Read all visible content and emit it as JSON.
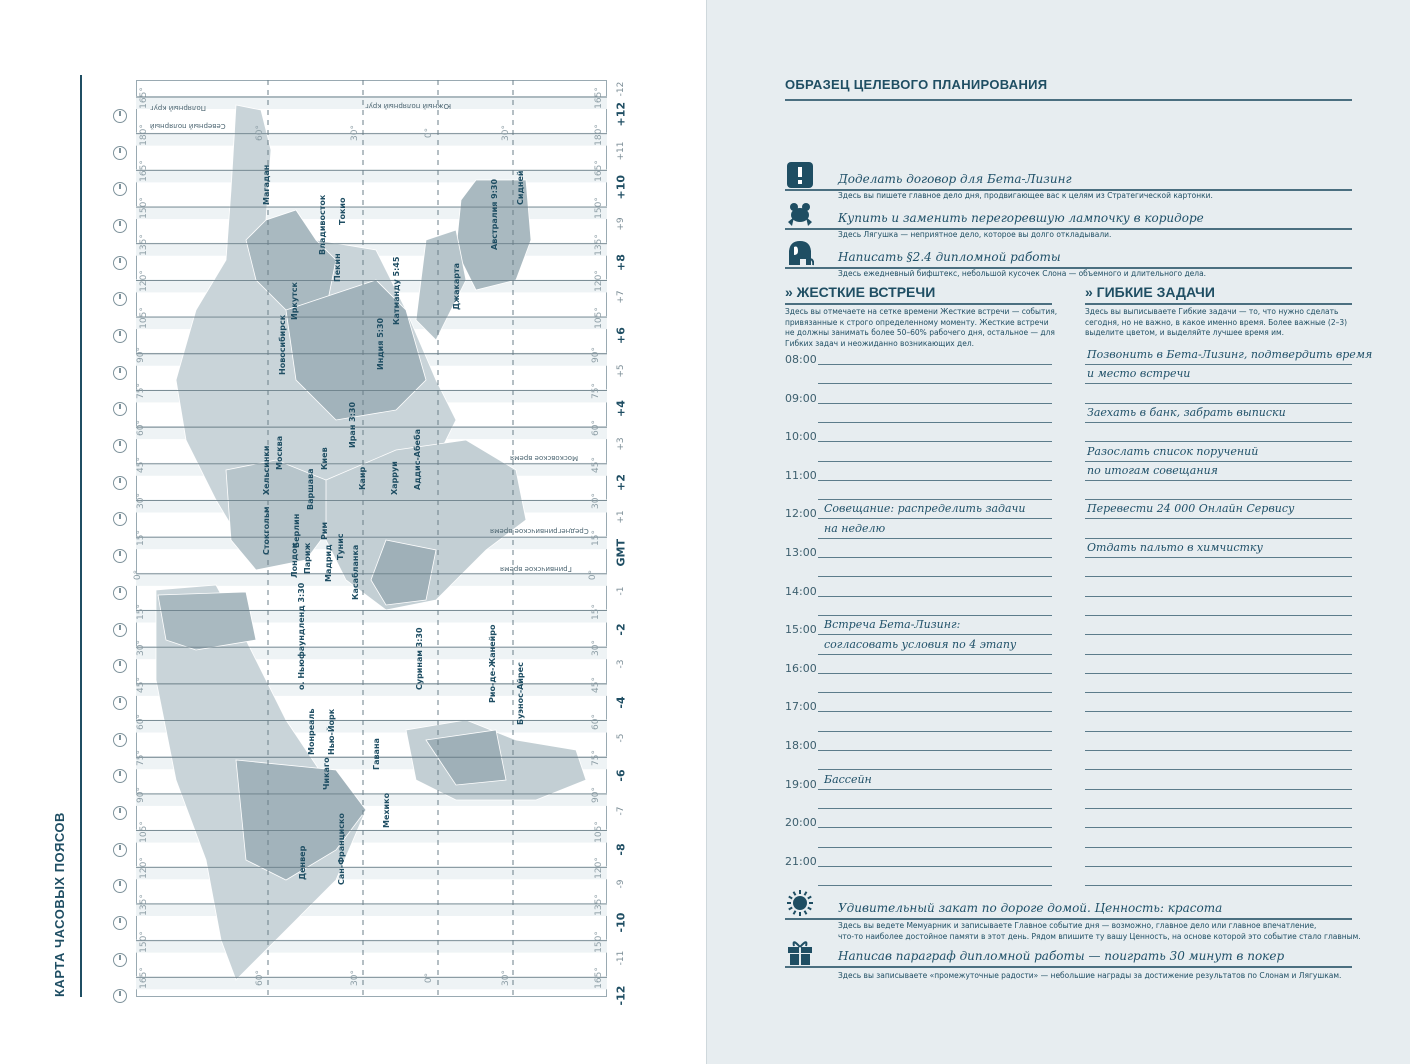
{
  "left_page": {
    "title": "КАРТА ЧАСОВЫХ ПОЯСОВ",
    "offsets": [
      "+12",
      "+11",
      "+10",
      "+9",
      "+8",
      "+7",
      "+6",
      "+5",
      "+4",
      "+3",
      "+2",
      "+1",
      "GMT",
      "-1",
      "-2",
      "-3",
      "-4",
      "-5",
      "-6",
      "-7",
      "-8",
      "-9",
      "-10",
      "-11",
      "-12"
    ],
    "top_offset": "-12",
    "degrees": [
      "165°",
      "180°",
      "165°",
      "150°",
      "135°",
      "120°",
      "105°",
      "90°",
      "75°",
      "60°",
      "45°",
      "30°",
      "15°",
      "0°",
      "15°",
      "30°",
      "45°",
      "60°",
      "75°",
      "90°",
      "105°",
      "120°",
      "135°",
      "150°",
      "165°"
    ],
    "meridians": [
      "60°",
      "30°",
      "0°",
      "30°"
    ],
    "annotations": [
      "Полярный круг",
      "Северный полярный",
      "Южный полярный круг",
      "Московское время",
      "Среднегринвичское время",
      "Гринвичское время"
    ],
    "cities": [
      "Магадан",
      "Владивосток",
      "Токио",
      "Пекин",
      "Иркутск",
      "Новосибирск",
      "Джакарта",
      "Индия 5:30",
      "Сидней",
      "Австралия 9:30",
      "Катманду 5:45",
      "Москва",
      "Стокгольм",
      "Хельсинки",
      "Берлин",
      "Варшава",
      "Киев",
      "Лондон",
      "Париж",
      "Мадрид",
      "Рим",
      "Тунис",
      "Касабланка",
      "Каир",
      "Харруи",
      "Аддис-Абеба",
      "Иран 3:30",
      "о. Ньюфаундленд 3:30",
      "Монреаль",
      "Нью-Йорк",
      "Чикаго",
      "Гавана",
      "Мехико",
      "Денвер",
      "Сан-Франциско",
      "Суринам 3:30",
      "Рио-де-Жанейро",
      "Буэнос-Айрес"
    ]
  },
  "right_page": {
    "title": "ОБРАЗЕЦ ЦЕЛЕВОГО ПЛАНИРОВАНИЯ",
    "key_tasks": [
      {
        "icon": "exclamation-icon",
        "entry": "Доделать договор для Бета-Лизинг",
        "hint": "Здесь вы пишете главное дело дня, продвигающее вас к целям из Стратегической картонки."
      },
      {
        "icon": "frog-icon",
        "entry": "Купить и заменить перегоревшую лампочку в коридоре",
        "hint": "Здесь Лягушка — неприятное дело, которое вы долго откладывали."
      },
      {
        "icon": "elephant-icon",
        "entry": "Написать §2.4 дипломной работы",
        "hint": "Здесь ежедневный бифштекс, небольшой кусочек Слона — объемного и длительного дела."
      }
    ],
    "hard_meetings": {
      "heading": "» ЖЕСТКИЕ ВСТРЕЧИ",
      "description": [
        "Здесь вы отмечаете на сетке времени Жесткие встречи — события,",
        "привязанные к строго определенному моменту. Жесткие встречи",
        "не должны занимать более 50–60% рабочего дня, остальное — для",
        "Гибких задач и неожиданно возникающих дел."
      ],
      "times": [
        "08:00",
        "09:00",
        "10:00",
        "11:00",
        "12:00",
        "13:00",
        "14:00",
        "15:00",
        "16:00",
        "17:00",
        "18:00",
        "19:00",
        "20:00",
        "21:00"
      ],
      "entries": [
        {
          "line": 8,
          "text": "Совещание: распределить задачи"
        },
        {
          "line": 9,
          "text": "на неделю"
        },
        {
          "line": 14,
          "text": "Встреча Бета-Лизинг:"
        },
        {
          "line": 15,
          "text": "согласовать условия по 4 этапу"
        },
        {
          "line": 22,
          "text": "Бассейн"
        }
      ]
    },
    "flexible_tasks": {
      "heading": "» ГИБКИЕ ЗАДАЧИ",
      "description": [
        "Здесь вы выписываете Гибкие задачи — то, что нужно сделать",
        "сегодня, но не важно, в какое именно время. Более важные (2–3)",
        "выделите цветом, и выделяйте лучшее время им."
      ],
      "entries": [
        {
          "line": 0,
          "text": "Позвонить в Бета-Лизинг, подтвердить время"
        },
        {
          "line": 1,
          "text": "и место встречи"
        },
        {
          "line": 3,
          "text": "Заехать в банк, забрать выписки"
        },
        {
          "line": 5,
          "text": "Разослать список поручений"
        },
        {
          "line": 6,
          "text": "по итогам совещания"
        },
        {
          "line": 8,
          "text": "Перевести 24 000 Онлайн Сервису"
        },
        {
          "line": 10,
          "text": "Отдать пальто в химчистку"
        }
      ]
    },
    "memoir": {
      "icon": "sun-icon",
      "entry": "Удивительный закат по дороге домой. Ценность: красота",
      "hint": [
        "Здесь вы ведете Мемуарник и записываете Главное событие дня — возможно, главное дело или главное впечатление,",
        "что-то наиболее достойное памяти в этот день. Рядом впишите ту вашу Ценность, на основе которой это событие стало главным."
      ]
    },
    "reward": {
      "icon": "gift-icon",
      "entry": "Написав параграф дипломной работы — поиграть 30 минут в покер",
      "hint": "Здесь вы записываете «промежуточные радости» — небольшие награды за достижение результатов по Слонам и Лягушкам."
    }
  },
  "colors": {
    "ink": "#1f4e63",
    "right_page_bg": "#e7edf0",
    "land_light": "#c9d4d9",
    "land_dark": "#9fb0b8"
  }
}
